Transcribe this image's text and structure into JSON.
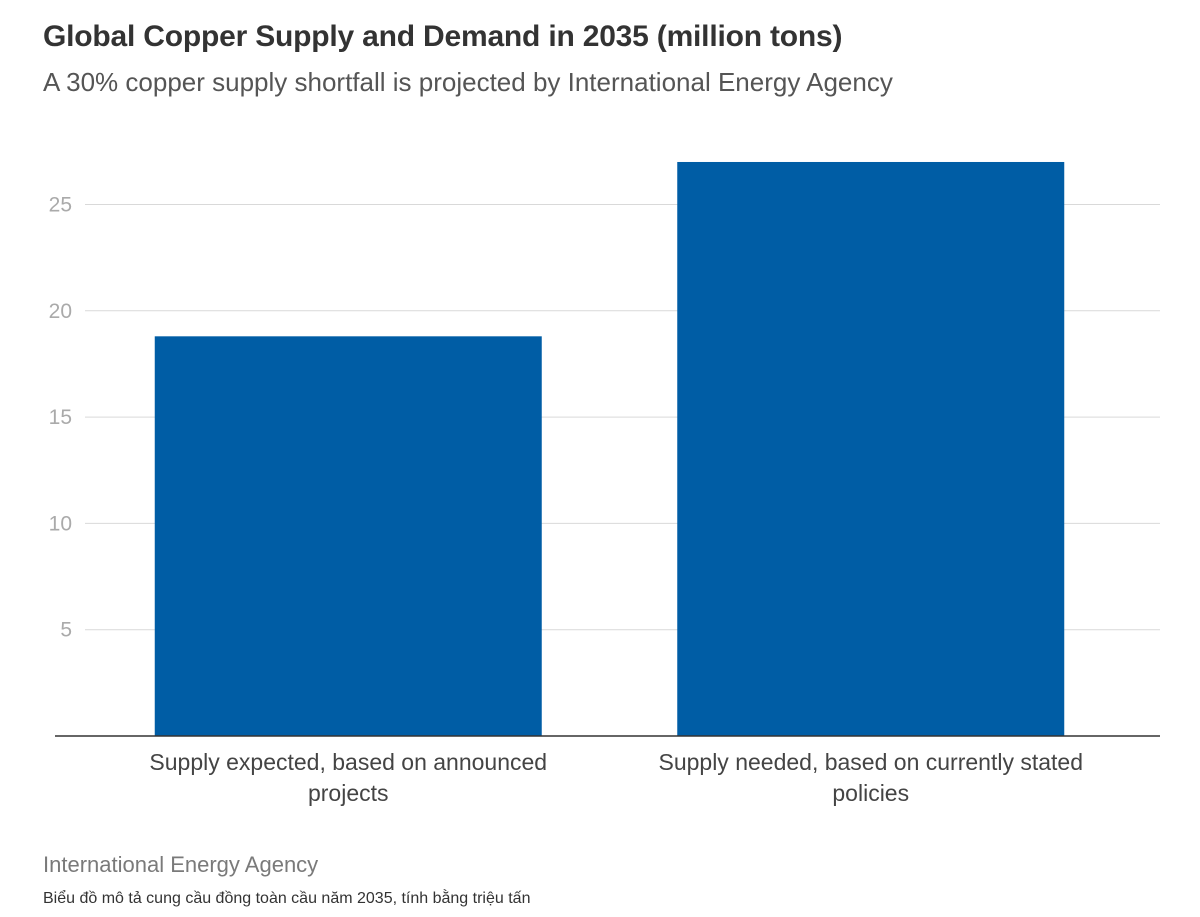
{
  "header": {
    "title": "Global Copper Supply and Demand in 2035 (million tons)",
    "subtitle": "A 30% copper supply shortfall is projected by International Energy Agency"
  },
  "footer": {
    "source": "International Energy Agency",
    "caption": "Biểu đồ mô tả cung cầu đồng toàn cầu năm 2035, tính bằng triệu tấn"
  },
  "chart_data": {
    "type": "bar",
    "title": "Global Copper Supply and Demand in 2035 (million tons)",
    "subtitle": "A 30% copper supply shortfall is projected by International Energy Agency",
    "categories": [
      [
        "Supply expected, based on announced",
        "projects"
      ],
      [
        "Supply needed, based on currently stated",
        "policies"
      ]
    ],
    "values": [
      18.8,
      27
    ],
    "yticks": [
      5,
      10,
      15,
      20,
      25
    ],
    "ylim": [
      0,
      27.5
    ],
    "xlabel": "",
    "ylabel": "",
    "grid": true,
    "legend": "none",
    "colors": {
      "bar": "#005da5",
      "grid": "#d9d9d9",
      "axis": "#333333"
    }
  }
}
